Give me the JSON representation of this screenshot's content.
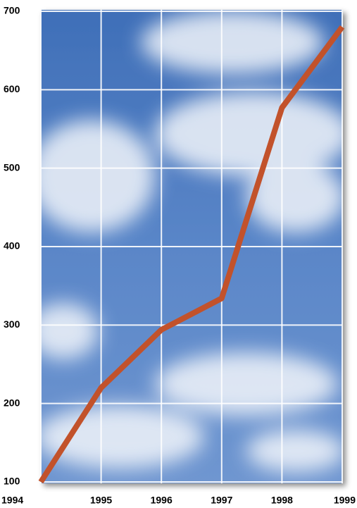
{
  "chart_data": {
    "type": "line",
    "x": [
      1994,
      1995,
      1996,
      1997,
      1998,
      1999
    ],
    "series": [
      {
        "color": "#c2522b",
        "values": [
          100,
          220,
          294,
          334,
          577,
          680
        ]
      }
    ],
    "xlim": [
      1994,
      1999
    ],
    "xticks": [
      1994,
      1995,
      1996,
      1997,
      1998,
      1999
    ],
    "ylim": [
      100,
      700
    ],
    "yticks": [
      100,
      200,
      300,
      400,
      500,
      600,
      700
    ],
    "grid": true
  }
}
